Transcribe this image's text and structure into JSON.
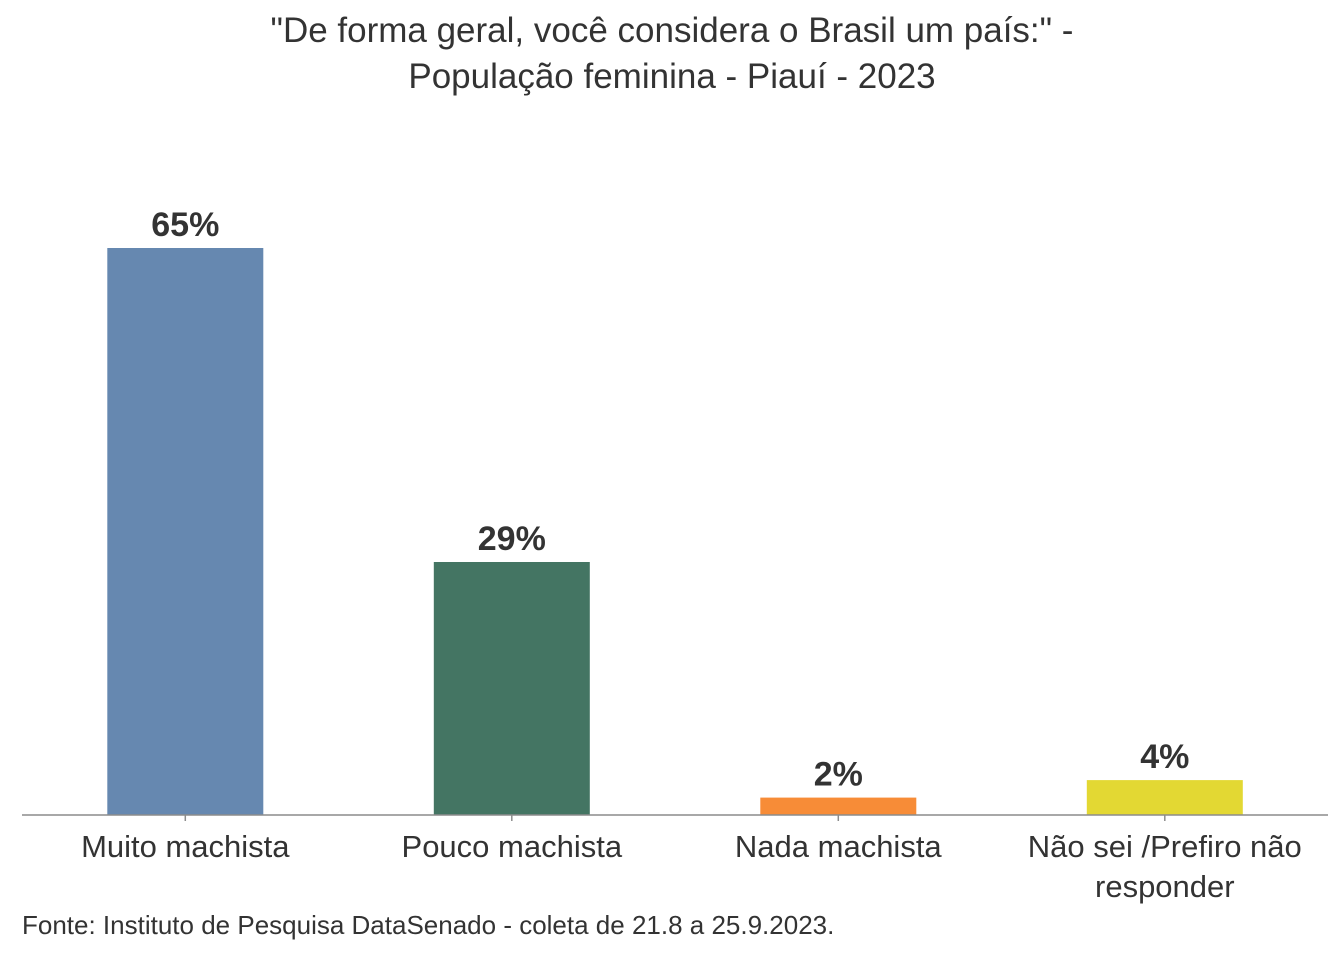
{
  "chart_data": {
    "type": "bar",
    "title_lines": [
      "\"De forma geral, você considera o Brasil um país:\" -",
      "População feminina - Piauí - 2023"
    ],
    "categories": [
      "Muito machista",
      "Pouco machista",
      "Nada machista",
      "Não sei /Prefiro não responder"
    ],
    "category_lines": [
      [
        "Muito machista"
      ],
      [
        "Pouco machista"
      ],
      [
        "Nada machista"
      ],
      [
        "Não sei /Prefiro não",
        "responder"
      ]
    ],
    "values": [
      65,
      29,
      2,
      4
    ],
    "value_labels": [
      "65%",
      "29%",
      "2%",
      "4%"
    ],
    "colors": [
      "#6688b0",
      "#447563",
      "#f78c37",
      "#e3d833"
    ],
    "ylim": [
      0,
      65
    ],
    "grid": false,
    "xlabel": "",
    "ylabel": ""
  },
  "source": "Fonte: Instituto de Pesquisa DataSenado - coleta de 21.8 a 25.9.2023."
}
